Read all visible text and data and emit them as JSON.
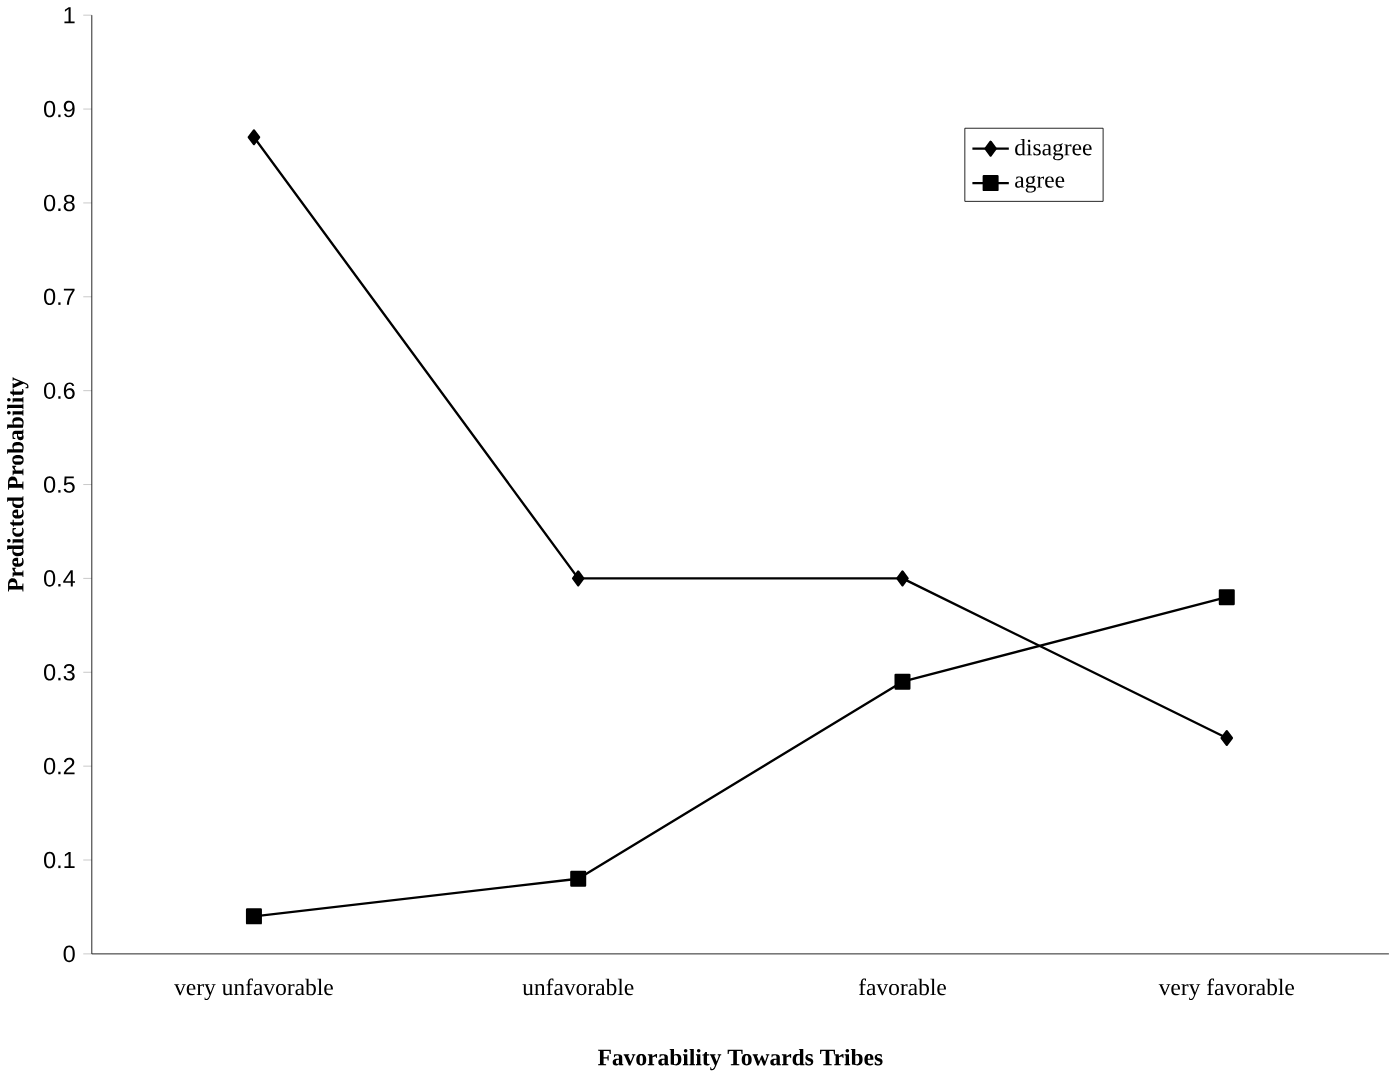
{
  "chart_data": {
    "type": "line",
    "xlabel": "Favorability Towards Tribes",
    "ylabel": "Predicted Probability",
    "categories": [
      "very unfavorable",
      "unfavorable",
      "favorable",
      "very favorable"
    ],
    "series": [
      {
        "name": "disagree",
        "color": "#000000",
        "marker": "diamond",
        "values": [
          0.87,
          0.4,
          0.4,
          0.23
        ]
      },
      {
        "name": "agree",
        "color": "#000000",
        "marker": "square",
        "values": [
          0.04,
          0.08,
          0.29,
          0.38
        ]
      }
    ],
    "ylim": [
      0,
      1
    ],
    "yticks": [
      0,
      0.1,
      0.2,
      0.3,
      0.4,
      0.5,
      0.6,
      0.7,
      0.8,
      0.9,
      1
    ],
    "legend": "top right",
    "line_style": "solid"
  }
}
